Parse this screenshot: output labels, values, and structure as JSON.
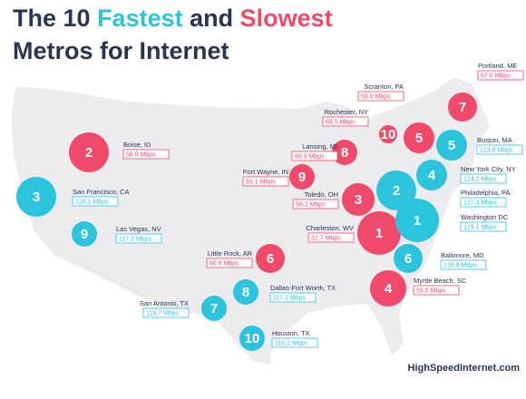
{
  "title": {
    "prefix": "The 10",
    "fastest": "Fastest",
    "and": "and",
    "slowest": "Slowest",
    "line2": "Metros for Internet"
  },
  "logo": "HighSpeedInternet.com",
  "metros": [
    {
      "rank": "2",
      "name": "Boise, ID",
      "speed": "56.9 Mbps",
      "color": "#ef4a6a"
    },
    {
      "rank": "8",
      "name": "Lansing, MI",
      "speed": "68.9 Mbps",
      "color": "#ef4a6a"
    },
    {
      "rank": "9",
      "name": "Fort Wayne, IN",
      "speed": "69.1 Mbps",
      "color": "#ef4a6a"
    },
    {
      "rank": "3",
      "name": "Toledo, OH",
      "speed": "58.2 Mbps",
      "color": "#ef4a6a"
    },
    {
      "rank": "1",
      "name": "Charleston, WV",
      "speed": "32.7 Mbps",
      "color": "#ef4a6a"
    },
    {
      "rank": "6",
      "name": "Little Rock, AR",
      "speed": "60.8 Mbps",
      "color": "#ef4a6a"
    },
    {
      "rank": "10",
      "name": "Rochester, NY",
      "speed": "69.5 Mbps",
      "color": "#ef4a6a"
    },
    {
      "rank": "5",
      "name": "Scranton, PA",
      "speed": "59.0 Mbps",
      "color": "#ef4a6a"
    },
    {
      "rank": "7",
      "name": "Portland, ME",
      "speed": "67.0 Mbps",
      "color": "#ef4a6a"
    },
    {
      "rank": "4",
      "name": "Myrtle Beach, SC",
      "speed": "59.0 Mbps",
      "color": "#ef4a6a"
    },
    {
      "rank": "3",
      "name": "San Francisco, CA",
      "speed": "126.1 Mbps",
      "color": "#2cc3dc"
    },
    {
      "rank": "9",
      "name": "Las Vegas, NV",
      "speed": "117.1 Mbps",
      "color": "#2cc3dc"
    },
    {
      "rank": "8",
      "name": "Dallas-Fort Worth, TX",
      "speed": "117.2 Mbps",
      "color": "#2cc3dc"
    },
    {
      "rank": "7",
      "name": "San Antonio, TX",
      "speed": "119.7 Mbps",
      "color": "#2cc3dc"
    },
    {
      "rank": "10",
      "name": "Houston, TX",
      "speed": "116.2 Mbps",
      "color": "#2cc3dc"
    },
    {
      "rank": "5",
      "name": "Boston, MA",
      "speed": "123.6 Mbps",
      "color": "#2cc3dc"
    },
    {
      "rank": "4",
      "name": "New York City, NY",
      "speed": "124.2 Mbps",
      "color": "#2cc3dc"
    },
    {
      "rank": "2",
      "name": "Philadelphia, PA",
      "speed": "127.4 Mbps",
      "color": "#2cc3dc"
    },
    {
      "rank": "1",
      "name": "Washington DC",
      "speed": "129.1 Mbps",
      "color": "#2cc3dc"
    },
    {
      "rank": "6",
      "name": "Baltimore, MD",
      "speed": "120.9 Mbps",
      "color": "#2cc3dc"
    }
  ]
}
